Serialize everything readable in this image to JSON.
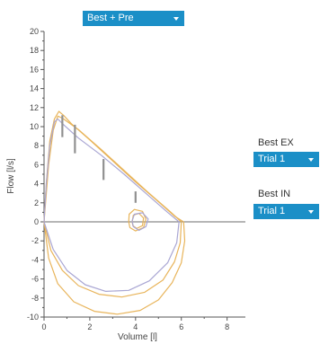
{
  "selectors": {
    "top": {
      "value": "Best + Pre"
    },
    "best_ex": {
      "label": "Best EX",
      "value": "Trial 1"
    },
    "best_in": {
      "label": "Best IN",
      "value": "Trial 1"
    }
  },
  "chart_data": {
    "type": "line",
    "xlabel": "Volume [l]",
    "ylabel": "Flow [l/s]",
    "xlim": [
      0,
      8.8
    ],
    "ylim": [
      -10,
      20
    ],
    "xticks": [
      0,
      2,
      4,
      6,
      8
    ],
    "yticks": [
      -10,
      -8,
      -6,
      -4,
      -2,
      0,
      2,
      4,
      6,
      8,
      10,
      12,
      14,
      16,
      18,
      20
    ],
    "colors": {
      "best": "#e8b45a",
      "pre": "#a9a6d3",
      "predicted_bars": "#909090",
      "axis": "#555555"
    },
    "series": [
      {
        "key": "best_expiratory",
        "color": "#e8b45a",
        "points": [
          [
            0,
            0
          ],
          [
            0.1,
            4
          ],
          [
            0.25,
            8.5
          ],
          [
            0.45,
            10.8
          ],
          [
            0.65,
            11.6
          ],
          [
            0.85,
            11.2
          ],
          [
            1.2,
            10.3
          ],
          [
            2,
            8.6
          ],
          [
            3,
            6.4
          ],
          [
            4,
            4.2
          ],
          [
            5,
            2.1
          ],
          [
            5.7,
            0.6
          ],
          [
            6.1,
            0
          ]
        ]
      },
      {
        "key": "best_expiratory_2",
        "color": "#e8b45a",
        "points": [
          [
            0,
            0
          ],
          [
            0.2,
            6
          ],
          [
            0.4,
            9.6
          ],
          [
            0.6,
            11.1
          ],
          [
            0.8,
            10.9
          ],
          [
            1.5,
            9.7
          ],
          [
            2.5,
            7.6
          ],
          [
            3.5,
            5.4
          ],
          [
            4.5,
            3.2
          ],
          [
            5.5,
            1.1
          ],
          [
            6,
            0
          ]
        ]
      },
      {
        "key": "best_inspiratory",
        "color": "#e8b45a",
        "points": [
          [
            6.1,
            0
          ],
          [
            6.15,
            -2
          ],
          [
            6,
            -4.3
          ],
          [
            5.6,
            -6.4
          ],
          [
            5,
            -8.2
          ],
          [
            4.2,
            -9.3
          ],
          [
            3.2,
            -9.7
          ],
          [
            2.2,
            -9.4
          ],
          [
            1.3,
            -8.4
          ],
          [
            0.6,
            -6.5
          ],
          [
            0.2,
            -3.8
          ],
          [
            0,
            0
          ]
        ]
      },
      {
        "key": "best_inspiratory_2",
        "color": "#e8b45a",
        "points": [
          [
            6,
            0
          ],
          [
            5.95,
            -2.2
          ],
          [
            5.7,
            -4.2
          ],
          [
            5.2,
            -6.1
          ],
          [
            4.4,
            -7.4
          ],
          [
            3.4,
            -7.9
          ],
          [
            2.4,
            -7.6
          ],
          [
            1.5,
            -6.7
          ],
          [
            0.8,
            -5.1
          ],
          [
            0.3,
            -3
          ],
          [
            0,
            0
          ]
        ]
      },
      {
        "key": "pre_expiratory",
        "color": "#a9a6d3",
        "points": [
          [
            0,
            0
          ],
          [
            0.1,
            4
          ],
          [
            0.25,
            8
          ],
          [
            0.45,
            10.5
          ],
          [
            0.6,
            10.8
          ],
          [
            0.9,
            10.1
          ],
          [
            1.5,
            8.8
          ],
          [
            2.5,
            7
          ],
          [
            3.5,
            5
          ],
          [
            4.5,
            2.9
          ],
          [
            5.4,
            1
          ],
          [
            5.9,
            0
          ]
        ]
      },
      {
        "key": "pre_inspiratory",
        "color": "#a9a6d3",
        "points": [
          [
            5.9,
            0
          ],
          [
            5.8,
            -2.2
          ],
          [
            5.4,
            -4.3
          ],
          [
            4.6,
            -6.2
          ],
          [
            3.7,
            -7.2
          ],
          [
            2.7,
            -7.3
          ],
          [
            1.8,
            -6.6
          ],
          [
            1,
            -5.1
          ],
          [
            0.4,
            -2.9
          ],
          [
            0,
            0
          ]
        ]
      },
      {
        "key": "tidal_loop",
        "color": "#e8b45a",
        "points": [
          [
            3.7,
            0
          ],
          [
            3.72,
            0.8
          ],
          [
            3.95,
            1.3
          ],
          [
            4.3,
            1.1
          ],
          [
            4.45,
            0.3
          ],
          [
            4.35,
            -0.6
          ],
          [
            4,
            -0.95
          ],
          [
            3.75,
            -0.6
          ],
          [
            3.7,
            0
          ]
        ]
      },
      {
        "key": "tidal_loop_2",
        "color": "#e8b45a",
        "points": [
          [
            3.85,
            0
          ],
          [
            3.9,
            0.7
          ],
          [
            4.15,
            0.9
          ],
          [
            4.35,
            0.4
          ],
          [
            4.3,
            -0.4
          ],
          [
            4.05,
            -0.7
          ],
          [
            3.88,
            -0.4
          ],
          [
            3.85,
            0
          ]
        ]
      },
      {
        "key": "tidal_loop_pre",
        "color": "#a9a6d3",
        "points": [
          [
            3.85,
            0.1
          ],
          [
            3.95,
            0.8
          ],
          [
            4.3,
            0.95
          ],
          [
            4.55,
            0.3
          ],
          [
            4.45,
            -0.5
          ],
          [
            4.15,
            -0.9
          ],
          [
            3.9,
            -0.5
          ],
          [
            3.85,
            0.1
          ]
        ]
      }
    ],
    "predicted_markers": [
      {
        "x": 0.8,
        "y_low": 8.9,
        "y_high": 11.2
      },
      {
        "x": 1.35,
        "y_low": 7.2,
        "y_high": 10.2
      },
      {
        "x": 2.6,
        "y_low": 4.4,
        "y_high": 6.6
      },
      {
        "x": 4.0,
        "y_low": 2.0,
        "y_high": 3.2
      }
    ]
  }
}
